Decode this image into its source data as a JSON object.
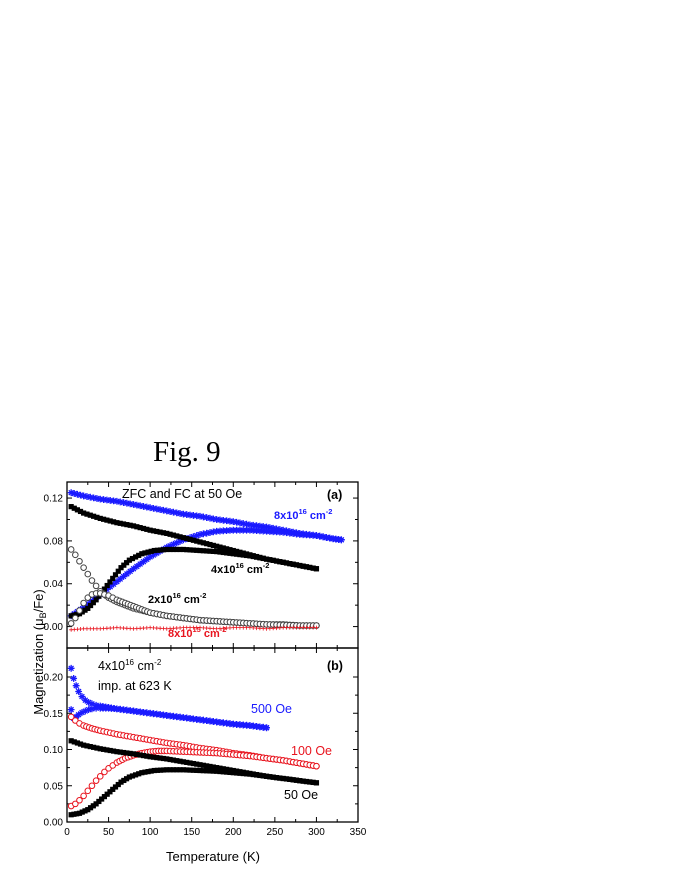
{
  "figure_label": "Fig. 9",
  "colors": {
    "black": "#000000",
    "blue": "#1a1aff",
    "red": "#e8141e",
    "open_gray": "#444444"
  },
  "chart_data": [
    {
      "type": "scatter",
      "panel": "(a)",
      "title": "ZFC and FC at 50 Oe",
      "xlabel": "Temperature (K)",
      "ylabel": "Magnetization (μB/Fe)",
      "xlim": [
        0,
        350
      ],
      "ylim": [
        -0.02,
        0.135
      ],
      "yticks": [
        0.0,
        0.04,
        0.08,
        0.12
      ],
      "ytick_labels": [
        "0.00",
        "0.04",
        "0.08",
        "0.12"
      ],
      "series": [
        {
          "label": {
            "base": "8x10",
            "sup": "16",
            "unit": " cm",
            "unit_sup": "-2"
          },
          "color": "#1a1aff",
          "marker": "star",
          "curves": [
            {
              "x": [
                5,
                20,
                40,
                60,
                80,
                100,
                120,
                140,
                160,
                180,
                200,
                220,
                240,
                260,
                280,
                300,
                320,
                330
              ],
              "y": [
                0.125,
                0.122,
                0.119,
                0.117,
                0.114,
                0.111,
                0.108,
                0.105,
                0.103,
                0.1,
                0.098,
                0.095,
                0.093,
                0.09,
                0.087,
                0.085,
                0.082,
                0.081
              ]
            },
            {
              "x": [
                5,
                20,
                40,
                60,
                80,
                100,
                120,
                140,
                160,
                180,
                200,
                220,
                240,
                260,
                280,
                300,
                320,
                330
              ],
              "y": [
                0.01,
                0.018,
                0.03,
                0.042,
                0.054,
                0.065,
                0.074,
                0.081,
                0.086,
                0.089,
                0.09,
                0.09,
                0.089,
                0.088,
                0.086,
                0.085,
                0.082,
                0.081
              ]
            }
          ]
        },
        {
          "label": {
            "base": "4x10",
            "sup": "16",
            "unit": " cm",
            "unit_sup": "-2"
          },
          "color": "#000000",
          "marker": "square",
          "curves": [
            {
              "x": [
                5,
                20,
                40,
                60,
                80,
                100,
                120,
                140,
                160,
                180,
                200,
                220,
                240,
                260,
                280,
                300
              ],
              "y": [
                0.112,
                0.106,
                0.101,
                0.097,
                0.094,
                0.09,
                0.087,
                0.083,
                0.079,
                0.075,
                0.071,
                0.067,
                0.063,
                0.06,
                0.057,
                0.054
              ]
            },
            {
              "x": [
                5,
                15,
                25,
                35,
                45,
                55,
                65,
                75,
                90,
                105,
                120,
                140,
                160,
                180,
                200,
                220,
                240,
                260,
                280,
                300
              ],
              "y": [
                0.01,
                0.012,
                0.017,
                0.025,
                0.035,
                0.045,
                0.055,
                0.062,
                0.068,
                0.071,
                0.072,
                0.072,
                0.071,
                0.07,
                0.068,
                0.066,
                0.063,
                0.06,
                0.057,
                0.054
              ]
            }
          ]
        },
        {
          "label": {
            "base": "2x10",
            "sup": "16",
            "unit": " cm",
            "unit_sup": "-2"
          },
          "color": "#444444",
          "marker": "circle-open",
          "curves": [
            {
              "x": [
                5,
                10,
                15,
                20,
                25,
                30,
                35,
                40,
                50,
                60,
                70,
                80,
                100,
                120,
                140,
                160,
                180,
                200,
                220,
                240,
                260,
                280,
                300
              ],
              "y": [
                0.072,
                0.067,
                0.061,
                0.055,
                0.049,
                0.043,
                0.038,
                0.033,
                0.027,
                0.023,
                0.02,
                0.017,
                0.013,
                0.01,
                0.008,
                0.006,
                0.005,
                0.004,
                0.003,
                0.002,
                0.002,
                0.001,
                0.001
              ]
            },
            {
              "x": [
                5,
                10,
                15,
                20,
                25,
                30,
                35,
                40,
                45,
                50,
                55,
                60,
                70,
                80,
                90,
                100,
                120,
                140,
                160,
                180,
                200,
                240,
                280,
                300
              ],
              "y": [
                0.003,
                0.008,
                0.015,
                0.022,
                0.027,
                0.03,
                0.031,
                0.031,
                0.03,
                0.029,
                0.027,
                0.025,
                0.022,
                0.019,
                0.016,
                0.013,
                0.01,
                0.008,
                0.006,
                0.005,
                0.004,
                0.002,
                0.001,
                0.001
              ]
            }
          ]
        },
        {
          "label": {
            "base": "8x10",
            "sup": "15",
            "unit": " cm",
            "unit_sup": "-2"
          },
          "color": "#e8141e",
          "marker": "plus-small",
          "curves": [
            {
              "x": [
                5,
                20,
                40,
                60,
                80,
                100,
                120,
                140,
                160,
                180,
                200,
                220,
                240,
                260,
                280,
                300
              ],
              "y": [
                -0.003,
                -0.002,
                -0.002,
                -0.001,
                -0.002,
                -0.001,
                -0.002,
                -0.001,
                -0.001,
                -0.002,
                -0.001,
                -0.001,
                -0.002,
                -0.001,
                -0.001,
                -0.001
              ]
            }
          ]
        }
      ]
    },
    {
      "type": "scatter",
      "panel": "(b)",
      "title": {
        "base": "4x10",
        "sup": "16",
        "unit": " cm",
        "unit_sup": "-2"
      },
      "subtitle": "imp. at 623 K",
      "xlabel": "Temperature (K)",
      "ylabel": "Magnetization (μB/Fe)",
      "xlim": [
        0,
        350
      ],
      "ylim": [
        0.0,
        0.24
      ],
      "xticks": [
        0,
        50,
        100,
        150,
        200,
        250,
        300,
        350
      ],
      "xtick_labels": [
        "0",
        "50",
        "100",
        "150",
        "200",
        "250",
        "300",
        "350"
      ],
      "yticks": [
        0.0,
        0.05,
        0.1,
        0.15,
        0.2
      ],
      "ytick_labels": [
        "0.00",
        "0.05",
        "0.10",
        "0.15",
        "0.20"
      ],
      "series": [
        {
          "label": "500 Oe",
          "color": "#1a1aff",
          "marker": "star",
          "curves": [
            {
              "x": [
                5,
                8,
                11,
                14,
                18,
                22,
                26,
                30,
                35,
                40,
                50,
                60,
                80,
                100,
                120,
                140,
                160,
                180,
                200,
                220,
                240
              ],
              "y": [
                0.212,
                0.198,
                0.188,
                0.18,
                0.173,
                0.168,
                0.165,
                0.163,
                0.161,
                0.16,
                0.158,
                0.156,
                0.153,
                0.15,
                0.147,
                0.144,
                0.141,
                0.138,
                0.135,
                0.133,
                0.13
              ]
            },
            {
              "x": [
                5,
                8,
                11,
                14,
                18,
                22,
                26,
                30,
                35,
                40,
                50,
                60,
                80,
                100,
                120,
                140,
                160,
                180,
                200,
                220,
                240
              ],
              "y": [
                0.155,
                0.143,
                0.145,
                0.148,
                0.151,
                0.153,
                0.155,
                0.156,
                0.157,
                0.157,
                0.157,
                0.156,
                0.153,
                0.15,
                0.147,
                0.144,
                0.141,
                0.138,
                0.135,
                0.133,
                0.13
              ]
            }
          ]
        },
        {
          "label": "100 Oe",
          "color": "#e8141e",
          "marker": "circle-open",
          "curves": [
            {
              "x": [
                5,
                10,
                15,
                20,
                30,
                40,
                60,
                80,
                100,
                120,
                140,
                160,
                180,
                200,
                220,
                240,
                260,
                280,
                300
              ],
              "y": [
                0.145,
                0.14,
                0.136,
                0.133,
                0.129,
                0.126,
                0.121,
                0.117,
                0.113,
                0.109,
                0.106,
                0.102,
                0.099,
                0.095,
                0.092,
                0.088,
                0.085,
                0.081,
                0.077
              ]
            },
            {
              "x": [
                5,
                10,
                15,
                20,
                25,
                30,
                35,
                40,
                45,
                50,
                55,
                60,
                70,
                80,
                90,
                100,
                110,
                120,
                140,
                160,
                180,
                200,
                220,
                240,
                260,
                280,
                300
              ],
              "y": [
                0.022,
                0.025,
                0.03,
                0.036,
                0.043,
                0.05,
                0.057,
                0.063,
                0.069,
                0.074,
                0.078,
                0.082,
                0.088,
                0.092,
                0.095,
                0.097,
                0.098,
                0.098,
                0.097,
                0.096,
                0.095,
                0.093,
                0.091,
                0.088,
                0.085,
                0.081,
                0.077
              ]
            }
          ]
        },
        {
          "label": "50 Oe",
          "color": "#000000",
          "marker": "square",
          "curves": [
            {
              "x": [
                5,
                20,
                40,
                60,
                80,
                100,
                120,
                140,
                160,
                180,
                200,
                220,
                240,
                260,
                280,
                300
              ],
              "y": [
                0.112,
                0.106,
                0.101,
                0.097,
                0.094,
                0.09,
                0.087,
                0.083,
                0.079,
                0.075,
                0.071,
                0.067,
                0.063,
                0.06,
                0.057,
                0.054
              ]
            },
            {
              "x": [
                5,
                15,
                25,
                35,
                45,
                55,
                65,
                75,
                90,
                105,
                120,
                140,
                160,
                180,
                200,
                220,
                240,
                260,
                280,
                300
              ],
              "y": [
                0.01,
                0.012,
                0.017,
                0.025,
                0.035,
                0.045,
                0.055,
                0.062,
                0.068,
                0.071,
                0.072,
                0.072,
                0.071,
                0.07,
                0.068,
                0.066,
                0.063,
                0.06,
                0.057,
                0.054
              ]
            }
          ]
        }
      ]
    }
  ]
}
